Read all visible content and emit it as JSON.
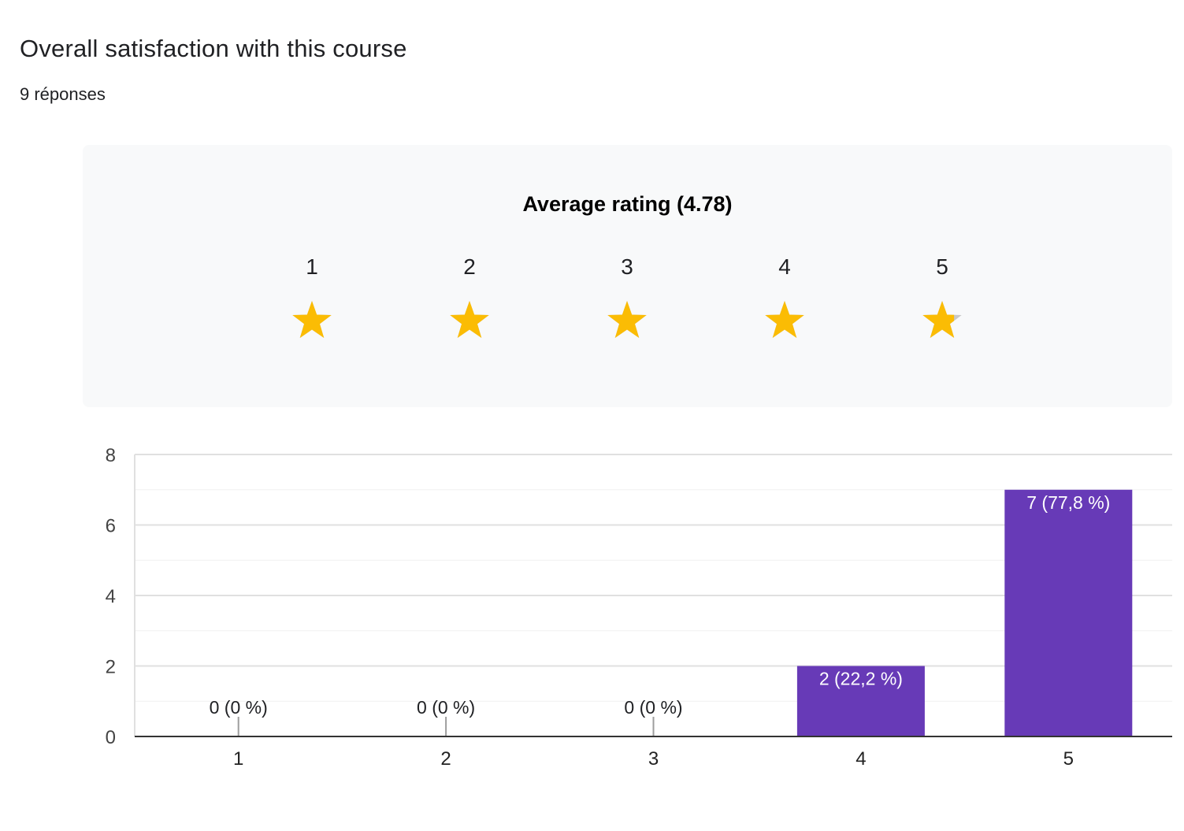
{
  "question": {
    "title": "Overall satisfaction with this course",
    "responses": "9 réponses"
  },
  "rating": {
    "heading": "Average rating (4.78)",
    "average": 4.78,
    "max": 5,
    "labels": [
      "1",
      "2",
      "3",
      "4",
      "5"
    ],
    "star_color": "#fbbc04",
    "star_empty_color": "#c8c8c8"
  },
  "chart_data": {
    "type": "bar",
    "categories": [
      "1",
      "2",
      "3",
      "4",
      "5"
    ],
    "values": [
      0,
      0,
      0,
      2,
      7
    ],
    "data_labels": [
      "0 (0 %)",
      "0 (0 %)",
      "0 (0 %)",
      "2 (22,2 %)",
      "7 (77,8 %)"
    ],
    "ylim": [
      0,
      8
    ],
    "yticks": [
      0,
      2,
      4,
      6,
      8
    ],
    "grid": true,
    "bar_color": "#673ab7"
  }
}
